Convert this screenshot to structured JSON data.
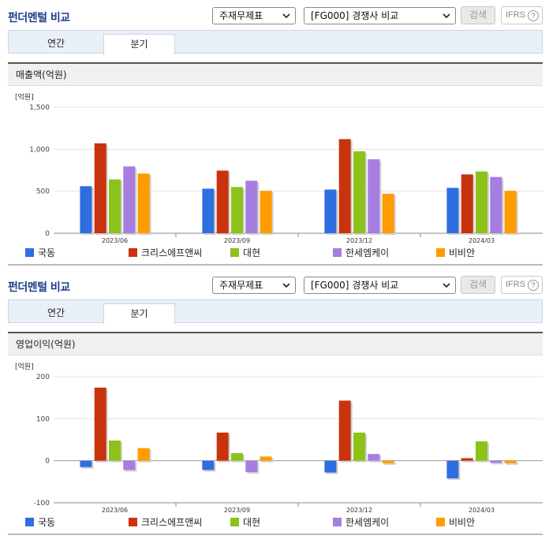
{
  "panels": [
    {
      "title": "펀더멘털 비교",
      "select_type": "주재무제표",
      "select_compare": "[FG000] 경쟁사 비교",
      "search_label": "검색",
      "ifrs_label": "IFRS",
      "ifrs_help": "?",
      "tabs": [
        "연간",
        "분기"
      ],
      "active_tab": "분기",
      "section_title": "매출액(억원)",
      "chart_data": {
        "type": "bar",
        "unit_label": "[억원]",
        "categories": [
          "2023/06",
          "2023/09",
          "2023/12",
          "2024/03"
        ],
        "ylim": [
          0,
          1500
        ],
        "yticks": [
          0,
          500,
          1000,
          1500
        ],
        "ytick_labels": [
          "0",
          "500",
          "1,000",
          "1,500"
        ],
        "grid": true,
        "legend_position": "bottom",
        "series": [
          {
            "name": "국동",
            "color": "#2f6ee0",
            "values": [
              560,
              530,
              520,
              540
            ]
          },
          {
            "name": "크리스에프앤씨",
            "color": "#c8330e",
            "values": [
              1070,
              745,
              1120,
              700
            ]
          },
          {
            "name": "대현",
            "color": "#8cc21a",
            "values": [
              640,
              550,
              975,
              735
            ]
          },
          {
            "name": "한세엠케이",
            "color": "#a57ee0",
            "values": [
              795,
              625,
              880,
              670
            ]
          },
          {
            "name": "비비안",
            "color": "#ff9c00",
            "values": [
              710,
              505,
              470,
              505
            ]
          }
        ]
      }
    },
    {
      "title": "펀더멘털 비교",
      "select_type": "주재무제표",
      "select_compare": "[FG000] 경쟁사 비교",
      "search_label": "검색",
      "ifrs_label": "IFRS",
      "ifrs_help": "?",
      "tabs": [
        "연간",
        "분기"
      ],
      "active_tab": "분기",
      "section_title": "영업이익(억원)",
      "chart_data": {
        "type": "bar",
        "unit_label": "[억원]",
        "categories": [
          "2023/06",
          "2023/09",
          "2023/12",
          "2024/03"
        ],
        "ylim": [
          -100,
          200
        ],
        "yticks": [
          -100,
          0,
          100,
          200
        ],
        "ytick_labels": [
          "-100",
          "0",
          "100",
          "200"
        ],
        "grid": true,
        "legend_position": "bottom",
        "series": [
          {
            "name": "국동",
            "color": "#2f6ee0",
            "values": [
              -15,
              -22,
              -28,
              -42
            ]
          },
          {
            "name": "크리스에프앤씨",
            "color": "#c8330e",
            "values": [
              174,
              67,
              143,
              6
            ]
          },
          {
            "name": "대현",
            "color": "#8cc21a",
            "values": [
              48,
              18,
              67,
              46
            ]
          },
          {
            "name": "한세엠케이",
            "color": "#a57ee0",
            "values": [
              -22,
              -27,
              16,
              -5
            ]
          },
          {
            "name": "비비안",
            "color": "#ff9c00",
            "values": [
              30,
              10,
              -6,
              -6
            ]
          }
        ]
      }
    }
  ]
}
